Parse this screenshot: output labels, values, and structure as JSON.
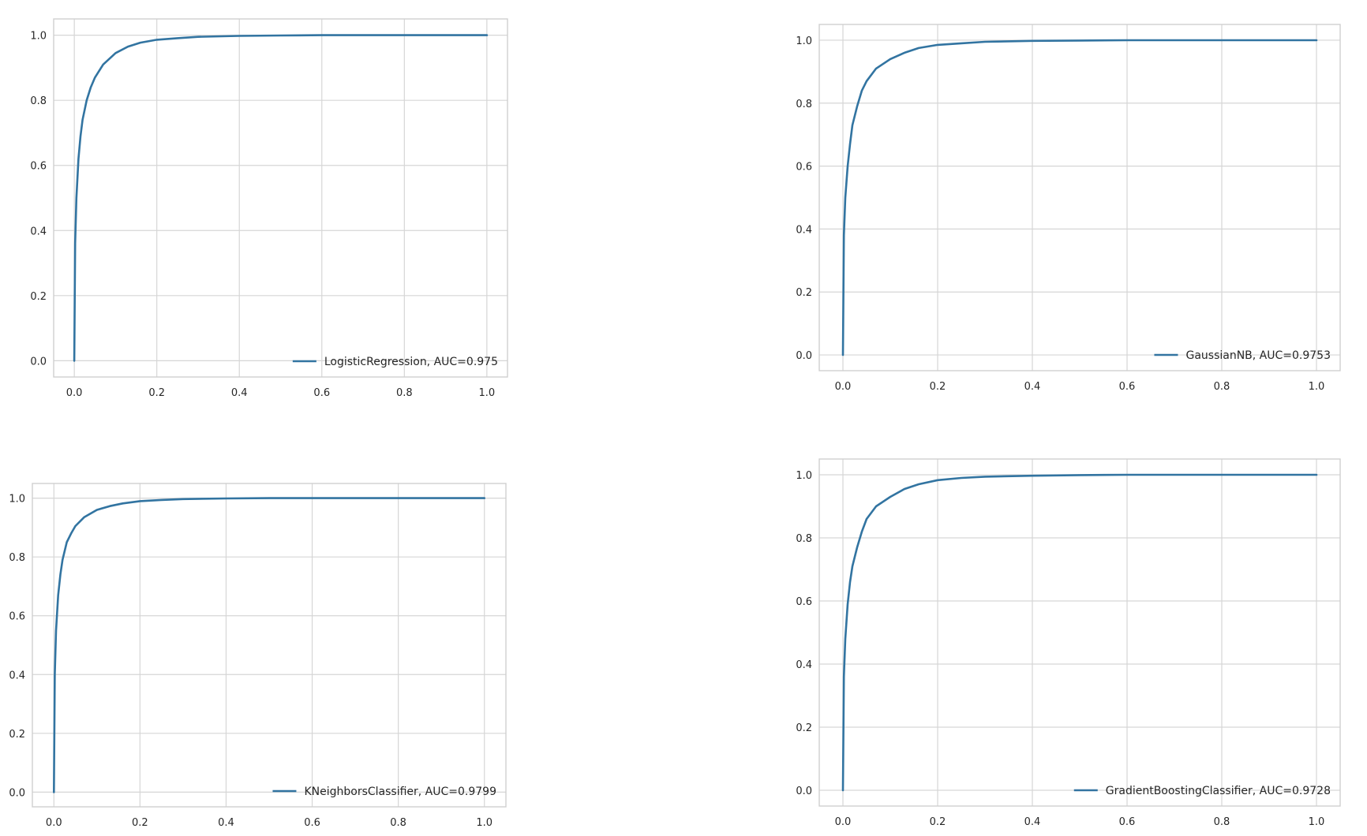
{
  "figure": {
    "background": "#ffffff",
    "plot_background": "#ffffff",
    "grid_color": "#d6d6d6",
    "frame_color": "#cfcfcf"
  },
  "chart_data": [
    {
      "type": "line",
      "title": "",
      "xlabel": "",
      "ylabel": "",
      "xlim": [
        -0.05,
        1.05
      ],
      "ylim": [
        -0.05,
        1.05
      ],
      "xticks": [
        "0.0",
        "0.2",
        "0.4",
        "0.6",
        "0.8",
        "1.0"
      ],
      "yticks": [
        "0.0",
        "0.2",
        "0.4",
        "0.6",
        "0.8",
        "1.0"
      ],
      "grid": true,
      "legend_position": "lower-right",
      "series": [
        {
          "name": "LogisticRegression, AUC=0.975",
          "color": "#3274a1",
          "x": [
            0,
            0.002,
            0.005,
            0.01,
            0.015,
            0.02,
            0.03,
            0.04,
            0.05,
            0.07,
            0.1,
            0.13,
            0.16,
            0.2,
            0.25,
            0.3,
            0.4,
            0.5,
            0.6,
            0.8,
            1.0
          ],
          "y": [
            0,
            0.36,
            0.5,
            0.62,
            0.69,
            0.74,
            0.8,
            0.84,
            0.87,
            0.91,
            0.945,
            0.965,
            0.977,
            0.986,
            0.991,
            0.995,
            0.998,
            0.999,
            1.0,
            1.0,
            1.0
          ]
        }
      ]
    },
    {
      "type": "line",
      "title": "",
      "xlabel": "",
      "ylabel": "",
      "xlim": [
        -0.05,
        1.05
      ],
      "ylim": [
        -0.05,
        1.05
      ],
      "xticks": [
        "0.0",
        "0.2",
        "0.4",
        "0.6",
        "0.8",
        "1.0"
      ],
      "yticks": [
        "0.0",
        "0.2",
        "0.4",
        "0.6",
        "0.8",
        "1.0"
      ],
      "grid": true,
      "legend_position": "lower-right",
      "series": [
        {
          "name": "GaussianNB, AUC=0.9753",
          "color": "#3274a1",
          "x": [
            0,
            0.002,
            0.005,
            0.01,
            0.015,
            0.02,
            0.03,
            0.04,
            0.05,
            0.07,
            0.1,
            0.13,
            0.16,
            0.2,
            0.25,
            0.3,
            0.4,
            0.5,
            0.6,
            0.8,
            1.0
          ],
          "y": [
            0,
            0.38,
            0.5,
            0.6,
            0.67,
            0.73,
            0.79,
            0.84,
            0.87,
            0.91,
            0.94,
            0.96,
            0.975,
            0.985,
            0.99,
            0.995,
            0.998,
            0.999,
            1.0,
            1.0,
            1.0
          ]
        }
      ]
    },
    {
      "type": "line",
      "title": "",
      "xlabel": "",
      "ylabel": "",
      "xlim": [
        -0.05,
        1.05
      ],
      "ylim": [
        -0.05,
        1.05
      ],
      "xticks": [
        "0.0",
        "0.2",
        "0.4",
        "0.6",
        "0.8",
        "1.0"
      ],
      "yticks": [
        "0.0",
        "0.2",
        "0.4",
        "0.6",
        "0.8",
        "1.0"
      ],
      "grid": true,
      "legend_position": "lower-right",
      "series": [
        {
          "name": "KNeighborsClassifier, AUC=0.9799",
          "color": "#3274a1",
          "x": [
            0,
            0.002,
            0.005,
            0.01,
            0.015,
            0.02,
            0.03,
            0.04,
            0.05,
            0.07,
            0.1,
            0.13,
            0.16,
            0.2,
            0.25,
            0.3,
            0.4,
            0.5,
            0.6,
            0.8,
            1.0
          ],
          "y": [
            0,
            0.4,
            0.55,
            0.67,
            0.74,
            0.79,
            0.85,
            0.88,
            0.905,
            0.935,
            0.96,
            0.973,
            0.982,
            0.99,
            0.994,
            0.997,
            0.999,
            1.0,
            1.0,
            1.0,
            1.0
          ]
        }
      ]
    },
    {
      "type": "line",
      "title": "",
      "xlabel": "",
      "ylabel": "",
      "xlim": [
        -0.05,
        1.05
      ],
      "ylim": [
        -0.05,
        1.05
      ],
      "xticks": [
        "0.0",
        "0.2",
        "0.4",
        "0.6",
        "0.8",
        "1.0"
      ],
      "yticks": [
        "0.0",
        "0.2",
        "0.4",
        "0.6",
        "0.8",
        "1.0"
      ],
      "grid": true,
      "legend_position": "lower-right",
      "series": [
        {
          "name": "GradientBoostingClassifier, AUC=0.9728",
          "color": "#3274a1",
          "x": [
            0,
            0.002,
            0.005,
            0.01,
            0.015,
            0.02,
            0.03,
            0.04,
            0.05,
            0.07,
            0.1,
            0.13,
            0.16,
            0.2,
            0.25,
            0.3,
            0.4,
            0.5,
            0.6,
            0.8,
            1.0
          ],
          "y": [
            0,
            0.36,
            0.48,
            0.59,
            0.66,
            0.71,
            0.77,
            0.82,
            0.86,
            0.9,
            0.93,
            0.955,
            0.97,
            0.983,
            0.99,
            0.994,
            0.997,
            0.999,
            1.0,
            1.0,
            1.0
          ]
        }
      ]
    }
  ]
}
